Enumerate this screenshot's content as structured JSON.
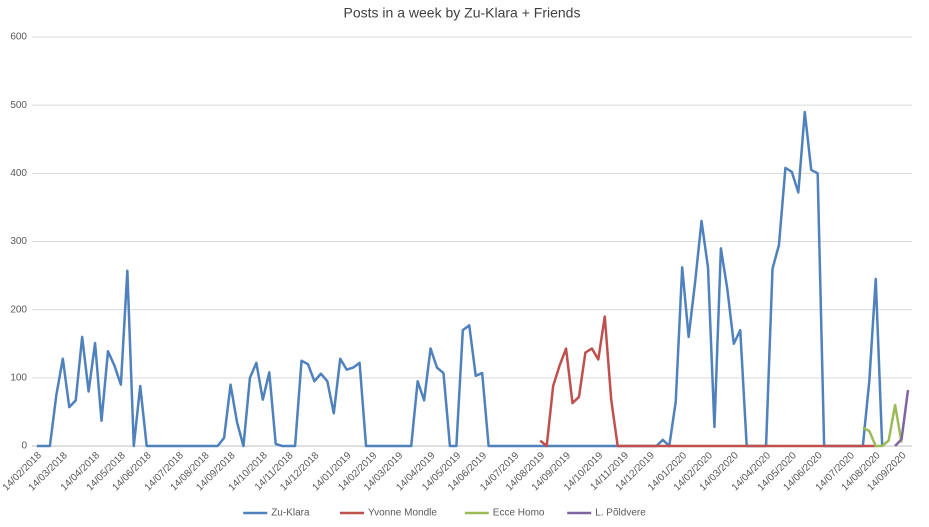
{
  "chart_data": {
    "type": "line",
    "title": "Posts in a week by Zu-Klara + Friends",
    "categories": [
      "14/02/2018",
      null,
      null,
      null,
      "14/03/2018",
      null,
      null,
      null,
      null,
      "14/04/2018",
      null,
      null,
      null,
      "14/05/2018",
      null,
      null,
      null,
      "14/06/2018",
      null,
      null,
      null,
      null,
      "14/07/2018",
      null,
      null,
      null,
      "14/08/2018",
      null,
      null,
      null,
      "14/09/2018",
      null,
      null,
      null,
      null,
      "14/10/2018",
      null,
      null,
      null,
      "14/11/2018",
      null,
      null,
      null,
      "14/12/2018",
      null,
      null,
      null,
      null,
      "14/01/2019",
      null,
      null,
      null,
      "14/02/2019",
      null,
      null,
      null,
      "14/03/2019",
      null,
      null,
      null,
      null,
      "14/04/2019",
      null,
      null,
      null,
      "14/05/2019",
      null,
      null,
      null,
      "14/06/2019",
      null,
      null,
      null,
      null,
      "14/07/2019",
      null,
      null,
      null,
      "14/08/2019",
      null,
      null,
      null,
      "14/09/2019",
      null,
      null,
      null,
      null,
      "14/10/2019",
      null,
      null,
      null,
      "14/11/2019",
      null,
      null,
      null,
      "14/12/2019",
      null,
      null,
      null,
      null,
      "14/01/2020",
      null,
      null,
      null,
      "14/02/2020",
      null,
      null,
      null,
      "14/03/2020",
      null,
      null,
      null,
      null,
      "14/04/2020",
      null,
      null,
      null,
      "14/05/2020",
      null,
      null,
      null,
      "14/06/2020",
      null,
      null,
      null,
      null,
      "14/07/2020",
      null,
      null,
      null,
      "14/08/2020",
      null,
      null,
      null,
      "14/09/2020",
      null
    ],
    "series": [
      {
        "name": "Zu-Klara",
        "color": "#4f81bd",
        "values": [
          0,
          0,
          0,
          75,
          128,
          57,
          67,
          160,
          80,
          151,
          37,
          139,
          118,
          90,
          257,
          0,
          88,
          0,
          0,
          0,
          0,
          0,
          0,
          0,
          0,
          0,
          0,
          0,
          0,
          12,
          90,
          35,
          0,
          100,
          122,
          68,
          108,
          3,
          0,
          0,
          0,
          125,
          120,
          95,
          106,
          95,
          48,
          128,
          112,
          115,
          122,
          0,
          0,
          0,
          0,
          0,
          0,
          0,
          0,
          95,
          67,
          143,
          115,
          107,
          0,
          0,
          170,
          177,
          103,
          107,
          0,
          0,
          0,
          0,
          0,
          0,
          0,
          0,
          0,
          0,
          0,
          0,
          0,
          0,
          0,
          0,
          0,
          0,
          0,
          0,
          0,
          0,
          0,
          0,
          0,
          0,
          0,
          9,
          0,
          65,
          262,
          160,
          240,
          330,
          262,
          28,
          290,
          230,
          150,
          170,
          0,
          0,
          0,
          0,
          260,
          295,
          408,
          402,
          372,
          490,
          405,
          400,
          0,
          0,
          0,
          0,
          0,
          0,
          0,
          95,
          245,
          0,
          null,
          null,
          null,
          null
        ]
      },
      {
        "name": "Yvonne Mondle",
        "color": "#c0504d",
        "values": [
          null,
          null,
          null,
          null,
          null,
          null,
          null,
          null,
          null,
          null,
          null,
          null,
          null,
          null,
          null,
          null,
          null,
          null,
          null,
          null,
          null,
          null,
          null,
          null,
          null,
          null,
          null,
          null,
          null,
          null,
          null,
          null,
          null,
          null,
          null,
          null,
          null,
          null,
          null,
          null,
          null,
          null,
          null,
          null,
          null,
          null,
          null,
          null,
          null,
          null,
          null,
          null,
          null,
          null,
          null,
          null,
          null,
          null,
          null,
          null,
          null,
          null,
          null,
          null,
          null,
          null,
          null,
          null,
          null,
          null,
          null,
          null,
          null,
          null,
          null,
          null,
          null,
          null,
          8,
          0,
          88,
          118,
          143,
          63,
          72,
          137,
          143,
          127,
          190,
          68,
          0,
          0,
          0,
          0,
          0,
          0,
          0,
          0,
          0,
          0,
          0,
          0,
          0,
          0,
          0,
          0,
          0,
          0,
          0,
          0,
          0,
          0,
          0,
          0,
          0,
          0,
          0,
          0,
          0,
          0,
          0,
          0,
          0,
          0,
          0,
          0,
          0,
          0,
          0,
          0,
          0,
          null,
          null,
          null,
          null,
          null
        ]
      },
      {
        "name": "Ecce Homo",
        "color": "#9bbb59",
        "values": [
          null,
          null,
          null,
          null,
          null,
          null,
          null,
          null,
          null,
          null,
          null,
          null,
          null,
          null,
          null,
          null,
          null,
          null,
          null,
          null,
          null,
          null,
          null,
          null,
          null,
          null,
          null,
          null,
          null,
          null,
          null,
          null,
          null,
          null,
          null,
          null,
          null,
          null,
          null,
          null,
          null,
          null,
          null,
          null,
          null,
          null,
          null,
          null,
          null,
          null,
          null,
          null,
          null,
          null,
          null,
          null,
          null,
          null,
          null,
          null,
          null,
          null,
          null,
          null,
          null,
          null,
          null,
          null,
          null,
          null,
          null,
          null,
          null,
          null,
          null,
          null,
          null,
          null,
          null,
          null,
          null,
          null,
          null,
          null,
          null,
          null,
          null,
          null,
          null,
          null,
          null,
          null,
          null,
          null,
          null,
          null,
          null,
          null,
          null,
          null,
          null,
          null,
          null,
          null,
          null,
          null,
          null,
          null,
          null,
          null,
          null,
          null,
          null,
          null,
          null,
          null,
          null,
          null,
          null,
          null,
          null,
          null,
          null,
          null,
          null,
          null,
          null,
          null,
          27,
          22,
          0,
          0,
          8,
          60,
          5,
          null
        ]
      },
      {
        "name": "L. Põldvere",
        "color": "#8064a2",
        "values": [
          null,
          null,
          null,
          null,
          null,
          null,
          null,
          null,
          null,
          null,
          null,
          null,
          null,
          null,
          null,
          null,
          null,
          null,
          null,
          null,
          null,
          null,
          null,
          null,
          null,
          null,
          null,
          null,
          null,
          null,
          null,
          null,
          null,
          null,
          null,
          null,
          null,
          null,
          null,
          null,
          null,
          null,
          null,
          null,
          null,
          null,
          null,
          null,
          null,
          null,
          null,
          null,
          null,
          null,
          null,
          null,
          null,
          null,
          null,
          null,
          null,
          null,
          null,
          null,
          null,
          null,
          null,
          null,
          null,
          null,
          null,
          null,
          null,
          null,
          null,
          null,
          null,
          null,
          null,
          null,
          null,
          null,
          null,
          null,
          null,
          null,
          null,
          null,
          null,
          null,
          null,
          null,
          null,
          null,
          null,
          null,
          null,
          null,
          null,
          null,
          null,
          null,
          null,
          null,
          null,
          null,
          null,
          null,
          null,
          null,
          null,
          null,
          null,
          null,
          null,
          null,
          null,
          null,
          null,
          null,
          null,
          null,
          null,
          null,
          null,
          null,
          null,
          null,
          null,
          null,
          null,
          null,
          null,
          0,
          10,
          82
        ]
      }
    ],
    "ylim": [
      0,
      600
    ],
    "yticks": [
      0,
      100,
      200,
      300,
      400,
      500,
      600
    ],
    "grid": true,
    "legend": "bottom"
  }
}
